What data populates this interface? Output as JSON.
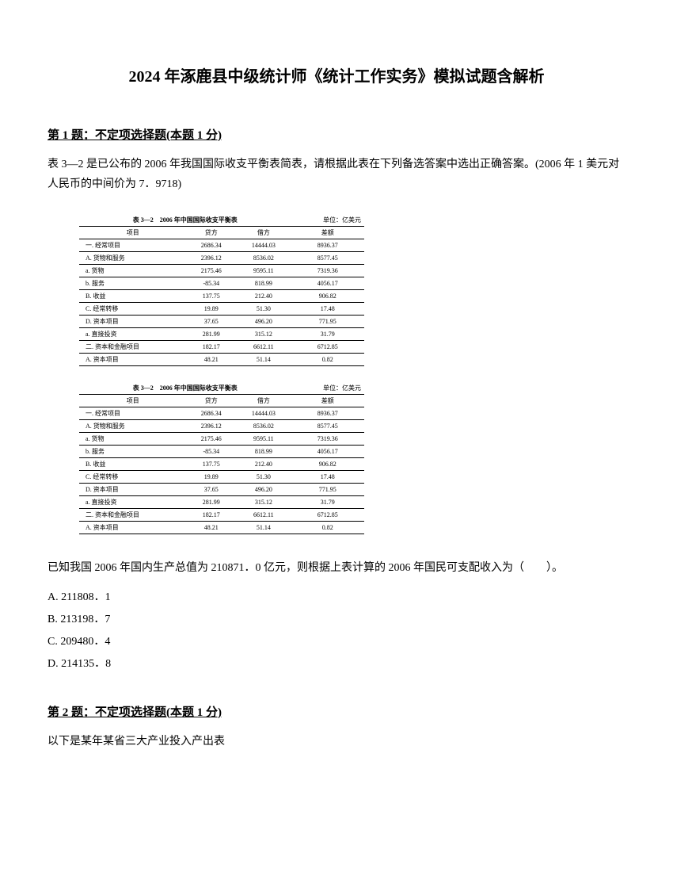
{
  "title": "2024 年涿鹿县中级统计师《统计工作实务》模拟试题含解析",
  "q1": {
    "header": "第 1 题：不定项选择题(本题 1 分)",
    "text": "表 3—2 是已公布的 2006 年我国国际收支平衡表简表，请根据此表在下列备选答案中选出正确答案。(2006 年 1 美元对人民币的中间价为 7．9718)",
    "calc": "已知我国 2006 年国内生产总值为 210871．0 亿元，则根据上表计算的 2006 年国民可支配收入为（　　）。",
    "optA": "A. 211808．1",
    "optB": "B. 213198．7",
    "optC": "C. 209480．4",
    "optD": "D. 214135．8"
  },
  "q2": {
    "header": "第 2 题：不定项选择题(本题 1 分)",
    "text": "以下是某年某省三大产业投入产出表"
  },
  "table": {
    "title": "表 3—2　2006 年中国国际收支平衡表",
    "unit": "单位：亿美元",
    "headers": {
      "item": "项目",
      "credit": "贷方",
      "debit": "借方",
      "balance": "差额"
    },
    "rows": [
      {
        "label": "一. 经常项目",
        "c1": "2686.34",
        "c2": "14444.03",
        "c3": "8936.37"
      },
      {
        "label": "A. 货物和服务",
        "c1": "2396.12",
        "c2": "8536.02",
        "c3": "8577.45"
      },
      {
        "label": "a. 货物",
        "c1": "2175.46",
        "c2": "9595.11",
        "c3": "7319.36"
      },
      {
        "label": "b. 服务",
        "c1": "-85.34",
        "c2": "818.99",
        "c3": "4056.17"
      },
      {
        "label": "B. 收益",
        "c1": "137.75",
        "c2": "212.40",
        "c3": "906.82"
      },
      {
        "label": "C. 经常转移",
        "c1": "19.89",
        "c2": "51.30",
        "c3": "17.48"
      },
      {
        "label": "D. 资本项目",
        "c1": "37.65",
        "c2": "496.20",
        "c3": "771.95"
      },
      {
        "label": "a. 直接投资",
        "c1": "281.99",
        "c2": "315.12",
        "c3": "31.79"
      },
      {
        "label": "二. 资本和金融项目",
        "c1": "182.17",
        "c2": "6612.11",
        "c3": "6712.85"
      },
      {
        "label": "A. 资本项目",
        "c1": "48.21",
        "c2": "51.14",
        "c3": "0.82"
      }
    ]
  }
}
